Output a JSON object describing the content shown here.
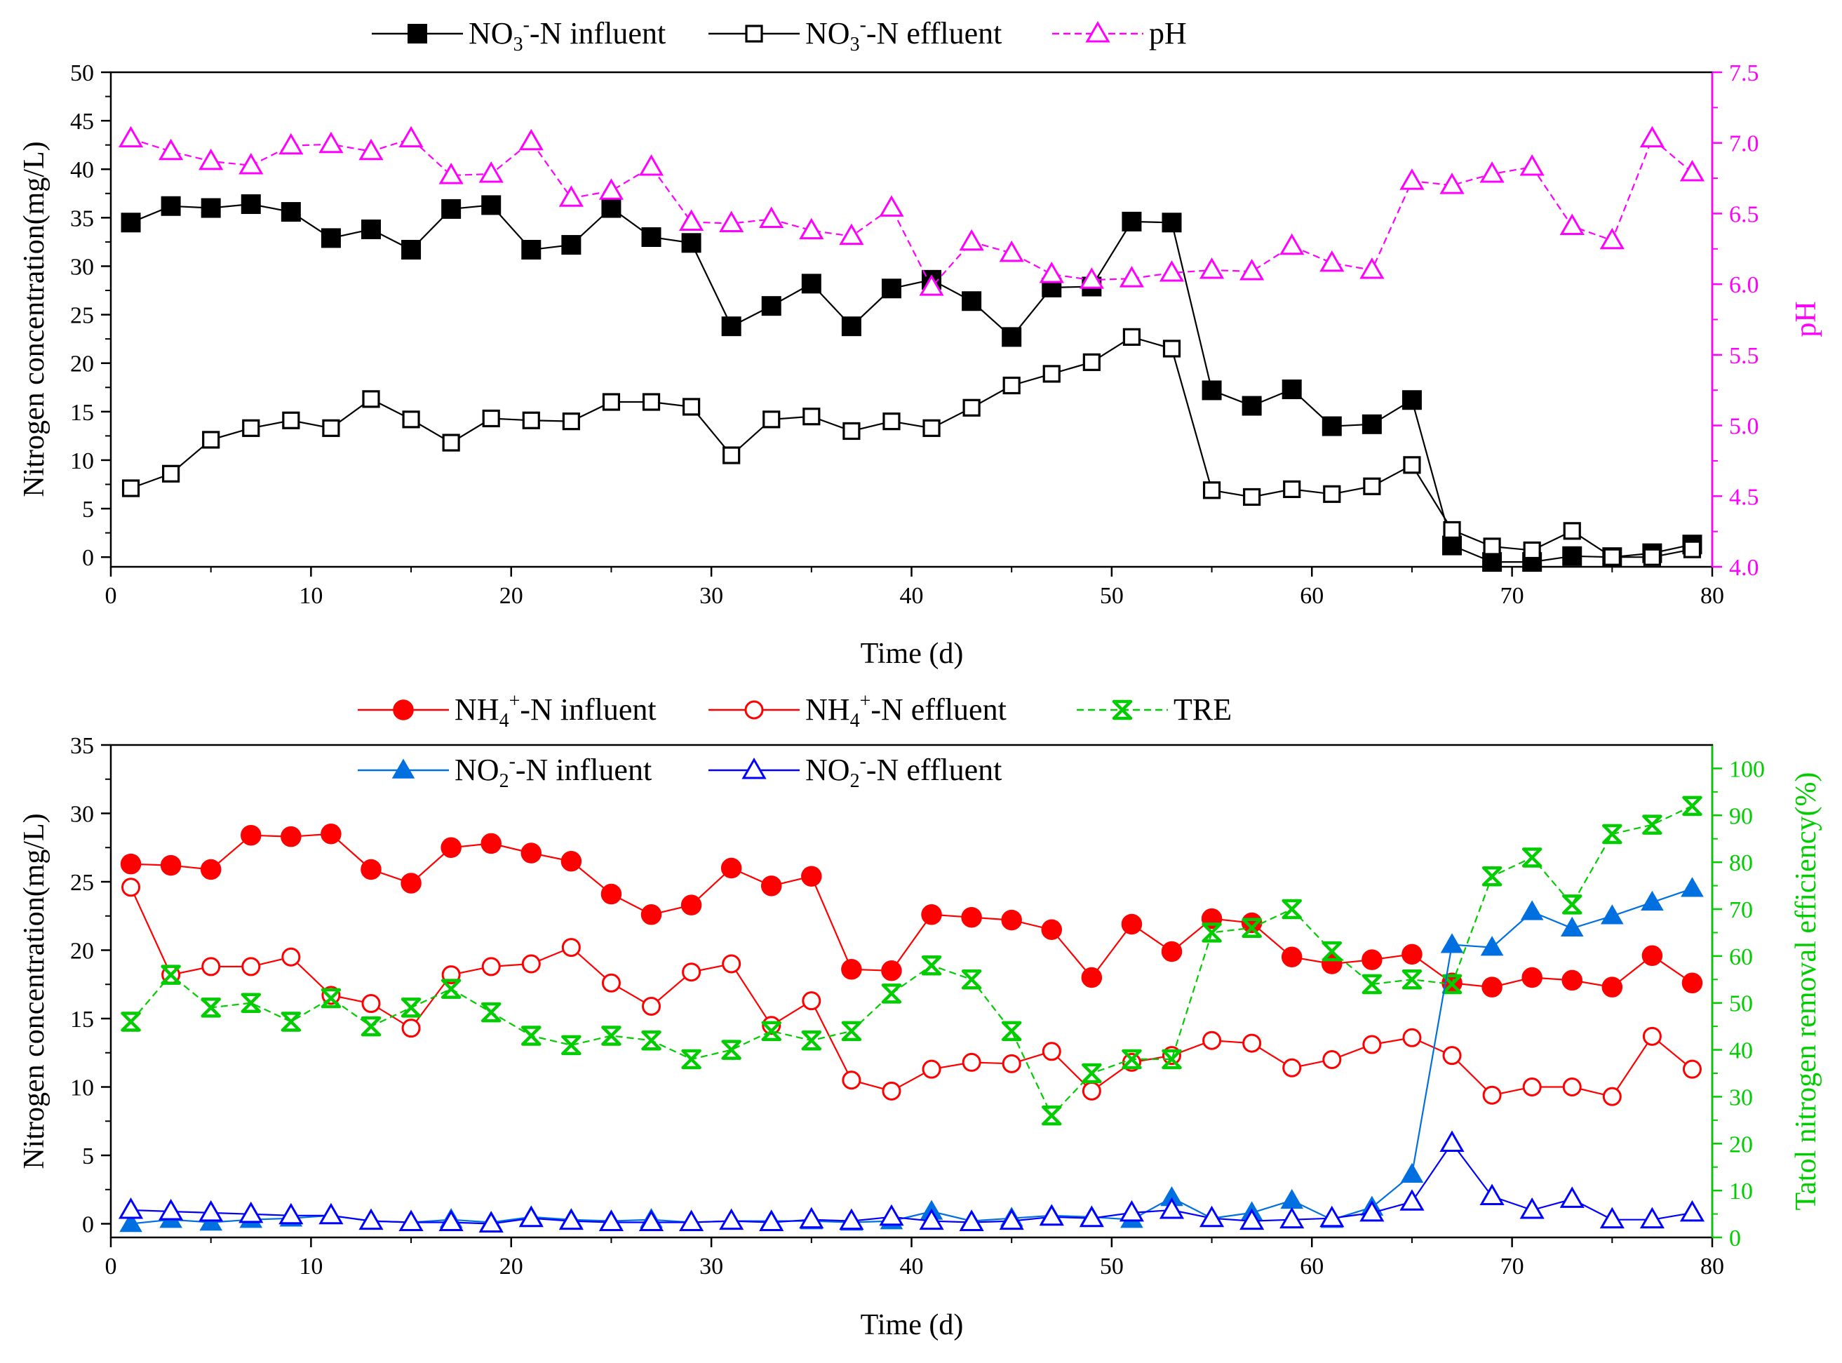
{
  "chart_data": [
    {
      "type": "line",
      "title": "",
      "xlabel": "Time (d)",
      "ylabel": "Nitrogen concentration(mg/L)",
      "y2label": "pH",
      "xlim": [
        0,
        80
      ],
      "ylim": [
        -1,
        50
      ],
      "y2lim": [
        4.0,
        7.5
      ],
      "x_ticks": [
        "0",
        "10",
        "20",
        "30",
        "40",
        "50",
        "60",
        "70",
        "80"
      ],
      "y_ticks": [
        "0",
        "5",
        "10",
        "15",
        "20",
        "25",
        "30",
        "35",
        "40",
        "45",
        "50"
      ],
      "y2_ticks": [
        "4.0",
        "4.5",
        "5.0",
        "5.5",
        "6.0",
        "6.5",
        "7.0",
        "7.5"
      ],
      "x": [
        1,
        3,
        5,
        7,
        9,
        11,
        13,
        15,
        17,
        19,
        21,
        23,
        25,
        27,
        29,
        31,
        33,
        35,
        37,
        39,
        41,
        43,
        45,
        47,
        49,
        51,
        53,
        55,
        57,
        59,
        61,
        63,
        65,
        67,
        69,
        71,
        73,
        75,
        77,
        79
      ],
      "series": [
        {
          "name": "NO3--N influent",
          "legend": {
            "base": "NO",
            "sub": "3",
            "sup": "-",
            "rest": "-N influent"
          },
          "color": "#000000",
          "marker": "square-filled",
          "axis": "left",
          "values": [
            34.5,
            36.2,
            36.0,
            36.4,
            35.6,
            32.9,
            33.8,
            31.7,
            35.9,
            36.3,
            31.7,
            32.2,
            36.0,
            33.0,
            32.4,
            23.8,
            25.9,
            28.2,
            23.8,
            27.7,
            28.6,
            26.4,
            22.7,
            27.8,
            27.9,
            34.6,
            34.5,
            17.2,
            15.6,
            17.3,
            13.5,
            13.7,
            16.2,
            1.2,
            -0.5,
            -0.5,
            0.1,
            0.0,
            0.4,
            1.3
          ]
        },
        {
          "name": "NO3--N effluent",
          "legend": {
            "base": "NO",
            "sub": "3",
            "sup": "-",
            "rest": "-N effluent"
          },
          "color": "#000000",
          "marker": "square-open",
          "axis": "left",
          "values": [
            7.1,
            8.6,
            12.1,
            13.3,
            14.1,
            13.3,
            16.3,
            14.2,
            11.8,
            14.3,
            14.1,
            14.0,
            16.0,
            16.0,
            15.5,
            10.5,
            14.2,
            14.5,
            13.0,
            14.0,
            13.3,
            15.4,
            17.7,
            18.9,
            20.1,
            22.7,
            21.5,
            6.9,
            6.2,
            7.0,
            6.5,
            7.3,
            9.5,
            2.8,
            1.1,
            0.7,
            2.7,
            0.0,
            0.0,
            0.8
          ]
        },
        {
          "name": "pH",
          "legend": {
            "base": "pH",
            "sub": "",
            "sup": "",
            "rest": ""
          },
          "color": "#ff00ff",
          "marker": "triangle-open",
          "axis": "right",
          "values": [
            7.03,
            6.94,
            6.87,
            6.84,
            6.98,
            6.99,
            6.94,
            7.03,
            6.77,
            6.78,
            7.01,
            6.61,
            6.66,
            6.83,
            6.44,
            6.43,
            6.46,
            6.38,
            6.34,
            6.54,
            5.98,
            6.3,
            6.22,
            6.07,
            6.03,
            6.04,
            6.08,
            6.1,
            6.09,
            6.27,
            6.15,
            6.1,
            6.73,
            6.7,
            6.78,
            6.83,
            6.41,
            6.31,
            7.03,
            6.79
          ]
        }
      ]
    },
    {
      "type": "line",
      "title": "",
      "xlabel": "Time (d)",
      "ylabel": "Nitrogen concentration(mg/L)",
      "y2label": "Tatol nitrogen removal efficiency(%)",
      "xlim": [
        0,
        80
      ],
      "ylim": [
        -1,
        35
      ],
      "y2lim": [
        0,
        105
      ],
      "x_ticks": [
        "0",
        "10",
        "20",
        "30",
        "40",
        "50",
        "60",
        "70",
        "80"
      ],
      "y_ticks": [
        "0",
        "5",
        "10",
        "15",
        "20",
        "25",
        "30",
        "35"
      ],
      "y2_ticks": [
        "0",
        "10",
        "20",
        "30",
        "40",
        "50",
        "60",
        "70",
        "80",
        "90",
        "100"
      ],
      "x": [
        1,
        3,
        5,
        7,
        9,
        11,
        13,
        15,
        17,
        19,
        21,
        23,
        25,
        27,
        29,
        31,
        33,
        35,
        37,
        39,
        41,
        43,
        45,
        47,
        49,
        51,
        53,
        55,
        57,
        59,
        61,
        63,
        65,
        67,
        69,
        71,
        73,
        75,
        77,
        79
      ],
      "series": [
        {
          "name": "NH4+-N influent",
          "legend": {
            "base": "NH",
            "sub": "4",
            "sup": "+",
            "rest": "-N influent"
          },
          "color": "#ff0000",
          "marker": "circle-filled",
          "axis": "left",
          "values": [
            26.3,
            26.2,
            25.9,
            28.4,
            28.3,
            28.5,
            25.9,
            24.9,
            27.5,
            27.8,
            27.1,
            26.5,
            24.1,
            22.6,
            23.3,
            26.0,
            24.7,
            25.4,
            18.6,
            18.5,
            22.6,
            22.4,
            22.2,
            21.5,
            18.0,
            21.9,
            19.9,
            22.3,
            22.0,
            19.5,
            19.0,
            19.3,
            19.7,
            17.6,
            17.3,
            18.0,
            17.8,
            17.3,
            19.6,
            17.6
          ]
        },
        {
          "name": "NH4+-N effluent",
          "legend": {
            "base": "NH",
            "sub": "4",
            "sup": "+",
            "rest": "-N effluent"
          },
          "color": "#ff0000",
          "marker": "circle-open",
          "axis": "left",
          "values": [
            24.6,
            18.2,
            18.8,
            18.8,
            19.5,
            16.7,
            16.1,
            14.3,
            18.2,
            18.8,
            19.0,
            20.2,
            17.6,
            15.9,
            18.4,
            19.0,
            14.5,
            16.3,
            10.5,
            9.7,
            11.3,
            11.8,
            11.7,
            12.6,
            9.7,
            11.8,
            12.3,
            13.4,
            13.2,
            11.4,
            12.0,
            13.1,
            13.6,
            12.3,
            9.4,
            10.0,
            10.0,
            9.3,
            13.7,
            11.3
          ]
        },
        {
          "name": "TRE",
          "legend": {
            "base": "TRE",
            "sub": "",
            "sup": "",
            "rest": ""
          },
          "color": "#00cc00",
          "marker": "x-star",
          "axis": "right",
          "values": [
            46,
            56,
            49,
            50,
            46,
            51,
            45,
            49,
            53,
            48,
            43,
            41,
            43,
            42,
            38,
            40,
            44,
            42,
            44,
            52,
            58,
            55,
            44,
            26,
            35,
            38,
            38,
            65,
            66,
            70,
            61,
            54,
            55,
            54,
            77,
            81,
            71,
            86,
            88,
            92
          ]
        },
        {
          "name": "NO2--N influent",
          "legend": {
            "base": "NO",
            "sub": "2",
            "sup": "-",
            "rest": "-N influent"
          },
          "color": "#0070e0",
          "marker": "triangle-filled",
          "axis": "left",
          "values": [
            0.0,
            0.3,
            0.1,
            0.3,
            0.4,
            0.6,
            0.2,
            0.1,
            0.3,
            0.1,
            0.5,
            0.3,
            0.2,
            0.3,
            0.1,
            0.2,
            0.2,
            0.2,
            0.1,
            0.2,
            0.9,
            0.2,
            0.4,
            0.6,
            0.5,
            0.3,
            1.9,
            0.4,
            0.8,
            1.7,
            0.3,
            1.2,
            3.6,
            20.4,
            20.2,
            22.8,
            21.6,
            22.5,
            23.5,
            24.5
          ]
        },
        {
          "name": "NO2--N effluent",
          "legend": {
            "base": "NO",
            "sub": "2",
            "sup": "-",
            "rest": "-N effluent"
          },
          "color": "#0000ff",
          "marker": "triangle-open",
          "axis": "left",
          "values": [
            1.0,
            0.9,
            0.8,
            0.7,
            0.6,
            0.6,
            0.2,
            0.1,
            0.1,
            0.0,
            0.4,
            0.2,
            0.1,
            0.1,
            0.1,
            0.2,
            0.1,
            0.3,
            0.2,
            0.5,
            0.2,
            0.1,
            0.2,
            0.5,
            0.4,
            0.8,
            1.0,
            0.4,
            0.2,
            0.3,
            0.4,
            0.8,
            1.6,
            5.9,
            2.0,
            1.0,
            1.8,
            0.3,
            0.3,
            0.8
          ]
        }
      ]
    }
  ]
}
